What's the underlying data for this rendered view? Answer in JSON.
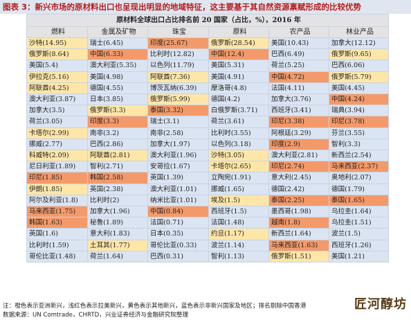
{
  "figure_title": "图表 3：新兴市场的原材料出口也呈现出明显的地域特征，这主要基于其自然资源禀赋形成的比较优势",
  "table_caption": "原材料全球出口占比排名前 20 国家（占比，%），2016 年",
  "columns": [
    "燃料",
    "金属及矿物",
    "珠宝",
    "原料",
    "农产品",
    "林业产品"
  ],
  "colors": {
    "emerging_asia": "#fde6a8",
    "emerging_latam": "#dae4f2",
    "other_emerging": "#f49a6a",
    "non_emerging": "#ffffff"
  },
  "rows": [
    [
      {
        "t": "沙特(14.95)",
        "c": "y"
      },
      {
        "t": "瑞士(6.45)",
        "c": "b"
      },
      {
        "t": "印度(25.67)",
        "c": "o"
      },
      {
        "t": "俄罗斯(28.54)",
        "c": "y"
      },
      {
        "t": "美国(10.43)",
        "c": "b"
      },
      {
        "t": "加拿大(12.12)",
        "c": "b"
      }
    ],
    [
      {
        "t": "俄罗斯(8.64)",
        "c": "y"
      },
      {
        "t": "中国(6.33)",
        "c": "o"
      },
      {
        "t": "比利时(12.82)",
        "c": "b"
      },
      {
        "t": "中国(12.4)",
        "c": "o"
      },
      {
        "t": "巴西(6.49)",
        "c": "b"
      },
      {
        "t": "俄罗斯(9.65)",
        "c": "y"
      }
    ],
    [
      {
        "t": "美国(5.4)",
        "c": "b"
      },
      {
        "t": "澳大利亚(5.35)",
        "c": "b"
      },
      {
        "t": "以色列(11.79)",
        "c": "b"
      },
      {
        "t": "美国(5.31)",
        "c": "b"
      },
      {
        "t": "荷兰(5.25)",
        "c": "b"
      },
      {
        "t": "巴西(6.06)",
        "c": "b"
      }
    ],
    [
      {
        "t": "伊拉克(5.16)",
        "c": "y"
      },
      {
        "t": "美国(4.98)",
        "c": "b"
      },
      {
        "t": "阿联酋(7.36)",
        "c": "y"
      },
      {
        "t": "美国(4.91)",
        "c": "b"
      },
      {
        "t": "中国(4.72)",
        "c": "o"
      },
      {
        "t": "俄罗斯(5.79)",
        "c": "y"
      }
    ],
    [
      {
        "t": "阿联酋(4.25)",
        "c": "y"
      },
      {
        "t": "德国(4.55)",
        "c": "b"
      },
      {
        "t": "博茨瓦纳(6.39)",
        "c": "b"
      },
      {
        "t": "摩洛哥(4.8)",
        "c": "b"
      },
      {
        "t": "法国(4.11)",
        "c": "b"
      },
      {
        "t": "美国(4.45)",
        "c": "b"
      }
    ],
    [
      {
        "t": "澳大利亚(3.87)",
        "c": "b"
      },
      {
        "t": "日本(3.85)",
        "c": "b"
      },
      {
        "t": "俄罗斯(5.99)",
        "c": "y"
      },
      {
        "t": "德国(4.2)",
        "c": "b"
      },
      {
        "t": "加拿大(3.76)",
        "c": "b"
      },
      {
        "t": "中国(4.24)",
        "c": "o"
      }
    ],
    [
      {
        "t": "加拿大(3.5)",
        "c": "b"
      },
      {
        "t": "俄罗斯(3.3)",
        "c": "y"
      },
      {
        "t": "泰国(3.32)",
        "c": "o"
      },
      {
        "t": "白俄罗斯(3.71)",
        "c": "b"
      },
      {
        "t": "西班牙(3.41)",
        "c": "b"
      },
      {
        "t": "瑞典(3.94)",
        "c": "b"
      }
    ],
    [
      {
        "t": "荷兰(3.05)",
        "c": "b"
      },
      {
        "t": "印度(3.3)",
        "c": "o"
      },
      {
        "t": "瑞士(3.1)",
        "c": "b"
      },
      {
        "t": "荷兰(3.61)",
        "c": "b"
      },
      {
        "t": "印尼(3.38)",
        "c": "o"
      },
      {
        "t": "印尼(3.78)",
        "c": "o"
      }
    ],
    [
      {
        "t": "卡塔尔(2.99)",
        "c": "y"
      },
      {
        "t": "南非(3.2)",
        "c": "b"
      },
      {
        "t": "南非(2.58)",
        "c": "b"
      },
      {
        "t": "比利时(3.55)",
        "c": "b"
      },
      {
        "t": "阿根廷(3.29)",
        "c": "b"
      },
      {
        "t": "芬兰(3.55)",
        "c": "b"
      }
    ],
    [
      {
        "t": "挪威(2.77)",
        "c": "b"
      },
      {
        "t": "巴西(2.86)",
        "c": "b"
      },
      {
        "t": "加拿大(1.97)",
        "c": "b"
      },
      {
        "t": "以色列(3.18)",
        "c": "b"
      },
      {
        "t": "印度(2.9)",
        "c": "o"
      },
      {
        "t": "智利(3.3)",
        "c": "b"
      }
    ],
    [
      {
        "t": "科威特(2.09)",
        "c": "y"
      },
      {
        "t": "阿联酋(2.81)",
        "c": "y"
      },
      {
        "t": "澳大利亚(1.96)",
        "c": "b"
      },
      {
        "t": "沙特(3.05)",
        "c": "y"
      },
      {
        "t": "澳大利亚(2.81)",
        "c": "b"
      },
      {
        "t": "新西兰(2.54)",
        "c": "b"
      }
    ],
    [
      {
        "t": "尼日利亚(1.89)",
        "c": "b"
      },
      {
        "t": "智利(2.71)",
        "c": "b"
      },
      {
        "t": "安哥拉(1.67)",
        "c": "b"
      },
      {
        "t": "卡塔尔(2.65)",
        "c": "y"
      },
      {
        "t": "印尼(2.74)",
        "c": "o"
      },
      {
        "t": "马来西亚(2.37)",
        "c": "o"
      }
    ],
    [
      {
        "t": "印尼(1.85)",
        "c": "o"
      },
      {
        "t": "韩国(2.58)",
        "c": "o"
      },
      {
        "t": "英国(1.39)",
        "c": "b"
      },
      {
        "t": "立陶宛(1.91)",
        "c": "b"
      },
      {
        "t": "意大利(2.45)",
        "c": "b"
      },
      {
        "t": "奥地利(2.07)",
        "c": "b"
      }
    ],
    [
      {
        "t": "伊朗(1.85)",
        "c": "y"
      },
      {
        "t": "英国(2.38)",
        "c": "b"
      },
      {
        "t": "澳大利亚(1.01)",
        "c": "b"
      },
      {
        "t": "挪威(1.65)",
        "c": "b"
      },
      {
        "t": "德国(2.42)",
        "c": "b"
      },
      {
        "t": "德国(1.79)",
        "c": "b"
      }
    ],
    [
      {
        "t": "阿尔及利亚(1.8)",
        "c": "b"
      },
      {
        "t": "比利时(2)",
        "c": "b"
      },
      {
        "t": "纳米比亚(1.01)",
        "c": "b"
      },
      {
        "t": "埃及(1.5)",
        "c": "y"
      },
      {
        "t": "泰国(2.25)",
        "c": "o"
      },
      {
        "t": "泰国(1.65)",
        "c": "o"
      }
    ],
    [
      {
        "t": "马来西亚(1.75)",
        "c": "o"
      },
      {
        "t": "加拿大(1.96)",
        "c": "b"
      },
      {
        "t": "中国(0.84)",
        "c": "o"
      },
      {
        "t": "西班牙(1.5)",
        "c": "b"
      },
      {
        "t": "墨西哥(1.98)",
        "c": "b"
      },
      {
        "t": "乌拉圭(1.64)",
        "c": "b"
      }
    ],
    [
      {
        "t": "韩国(1.63)",
        "c": "o"
      },
      {
        "t": "秘鲁(1.89)",
        "c": "b"
      },
      {
        "t": "法国(0.71)",
        "c": "b"
      },
      {
        "t": "法国(1.48)",
        "c": "b"
      },
      {
        "t": "越南(1.8)",
        "c": "o"
      },
      {
        "t": "乌拉圭(1.51)",
        "c": "b"
      }
    ],
    [
      {
        "t": "英国(1.6)",
        "c": "b"
      },
      {
        "t": "意大利(1.83)",
        "c": "b"
      },
      {
        "t": "日本(0.35)",
        "c": "b"
      },
      {
        "t": "约旦(1.17)",
        "c": "y"
      },
      {
        "t": "新西兰(1.64)",
        "c": "b"
      },
      {
        "t": "波兰(1.5)",
        "c": "b"
      }
    ],
    [
      {
        "t": "比利时(1.59)",
        "c": "b"
      },
      {
        "t": "土耳其(1.77)",
        "c": "y"
      },
      {
        "t": "哥伦比亚(0.33)",
        "c": "b"
      },
      {
        "t": "波兰(1.14)",
        "c": "b"
      },
      {
        "t": "马来西亚(1.63)",
        "c": "o"
      },
      {
        "t": "西班牙(1.26)",
        "c": "b"
      }
    ],
    [
      {
        "t": "哥伦比亚(1.48)",
        "c": "b"
      },
      {
        "t": "荷兰(1.64)",
        "c": "b"
      },
      {
        "t": "巴西(0.31)",
        "c": "b"
      },
      {
        "t": "智利(1.13)",
        "c": "b"
      },
      {
        "t": "俄罗斯(1.51)",
        "c": "y"
      },
      {
        "t": "美国(1.21)",
        "c": "b"
      }
    ]
  ],
  "note": "注：橙色表示亚洲新兴，浅红色表示拉美新兴，黄色表示其他新兴，蓝色表示非新兴国家及地区；排名剔除中国香港",
  "source": "数据来源：UN Comtrade，CHRTD，兴业证券经济与金融研究院整理",
  "watermark": "匠河醇坊"
}
